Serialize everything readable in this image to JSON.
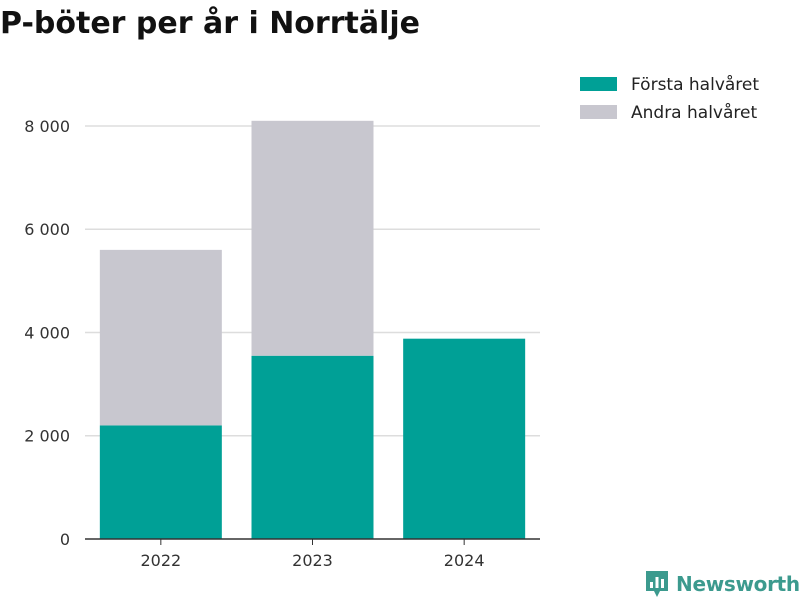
{
  "chart_data": {
    "type": "bar",
    "stacked": true,
    "title": "P-böter per år i Norrtälje",
    "xlabel": "",
    "ylabel": "",
    "categories": [
      "2022",
      "2023",
      "2024"
    ],
    "series": [
      {
        "name": "Första halvåret",
        "values": [
          2200,
          3550,
          3880
        ],
        "color": "#00a096"
      },
      {
        "name": "Andra halvåret",
        "values": [
          3400,
          4550,
          0
        ],
        "color": "#c8c7cf"
      }
    ],
    "ylim": [
      0,
      8600
    ],
    "yticks": [
      0,
      2000,
      4000,
      6000,
      8000
    ],
    "ytick_labels": [
      "0",
      "2 000",
      "4 000",
      "6 000",
      "8 000"
    ],
    "grid": true,
    "legend": "top-right"
  },
  "branding": {
    "logo_text": "Newsworthy",
    "logo_color": "#3c9a8e",
    "logo_icon": "bar-chart-badge-icon"
  }
}
